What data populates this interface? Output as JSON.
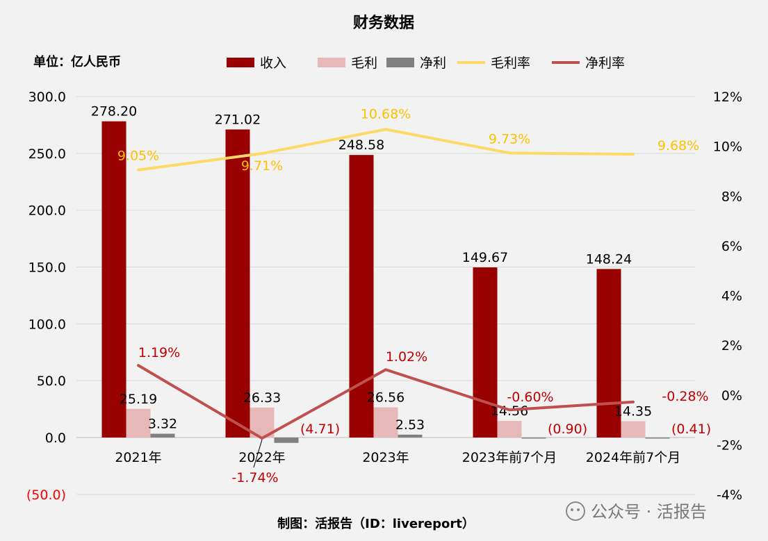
{
  "chart_data": {
    "type": "bar",
    "title": "财务数据",
    "unit_label": "单位：亿人民币",
    "categories": [
      "2021年",
      "2022年",
      "2023年",
      "2023年前7个月",
      "2024年前7个月"
    ],
    "series": [
      {
        "name": "收入",
        "kind": "bar",
        "axis": "left",
        "color": "#990000",
        "values": [
          278.2,
          271.02,
          248.58,
          149.67,
          148.24
        ],
        "labels": [
          "278.20",
          "271.02",
          "248.58",
          "149.67",
          "148.24"
        ]
      },
      {
        "name": "毛利",
        "kind": "bar",
        "axis": "left",
        "color": "#e6b8b7",
        "values": [
          25.19,
          26.33,
          26.56,
          14.56,
          14.35
        ],
        "labels": [
          "25.19",
          "26.33",
          "26.56",
          "14.56",
          "14.35"
        ]
      },
      {
        "name": "净利",
        "kind": "bar",
        "axis": "left",
        "color": "#808080",
        "values": [
          3.32,
          -4.71,
          2.53,
          -0.9,
          -0.41
        ],
        "labels": [
          "3.32",
          "(4.71)",
          "2.53",
          "(0.90)",
          "(0.41)"
        ]
      },
      {
        "name": "毛利率",
        "kind": "line",
        "axis": "right",
        "color": "#ffd966",
        "values": [
          9.05,
          9.71,
          10.68,
          9.73,
          9.68
        ],
        "labels": [
          "9.05%",
          "9.71%",
          "10.68%",
          "9.73%",
          "9.68%"
        ]
      },
      {
        "name": "净利率",
        "kind": "line",
        "axis": "right",
        "color": "#c0504d",
        "values": [
          1.19,
          -1.74,
          1.02,
          -0.6,
          -0.28
        ],
        "labels": [
          "1.19%",
          "-1.74%",
          "1.02%",
          "-0.60%",
          "-0.28%"
        ]
      }
    ],
    "y_left": {
      "ylim": [
        -50,
        300
      ],
      "ticks": [
        "(50.0)",
        "0.0",
        "50.0",
        "100.0",
        "150.0",
        "200.0",
        "250.0",
        "300.0"
      ],
      "tick_values": [
        -50,
        0,
        50,
        100,
        150,
        200,
        250,
        300
      ]
    },
    "y_right": {
      "ylim": [
        -4,
        12
      ],
      "ticks": [
        "-4%",
        "-2%",
        "0%",
        "2%",
        "4%",
        "6%",
        "8%",
        "10%",
        "12%"
      ],
      "tick_values": [
        -4,
        -2,
        0,
        2,
        4,
        6,
        8,
        10,
        12
      ]
    },
    "grid": true,
    "legend_position": "top"
  },
  "footer": "制图：活报告（ID：livereport）",
  "watermark": "公众号 · 活报告"
}
